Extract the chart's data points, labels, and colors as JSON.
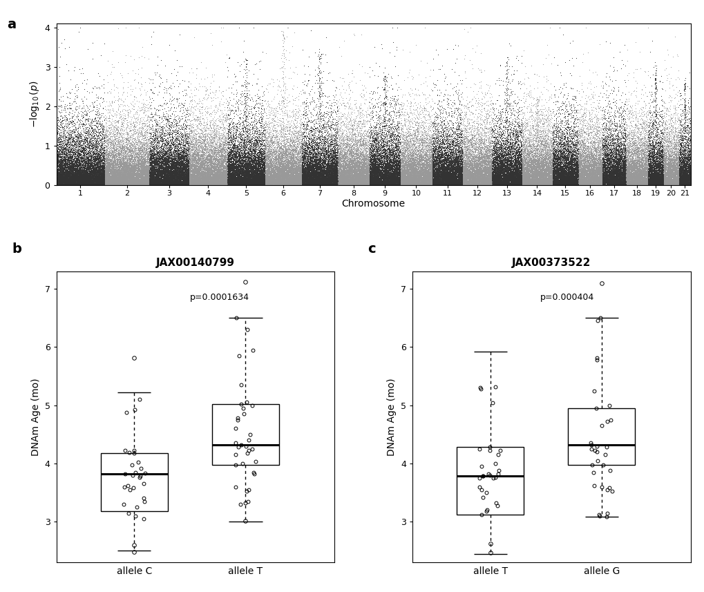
{
  "manhattan": {
    "chromosomes": [
      1,
      2,
      3,
      4,
      5,
      6,
      7,
      8,
      9,
      10,
      11,
      12,
      13,
      14,
      15,
      16,
      17,
      18,
      19,
      20,
      21
    ],
    "chr_sizes": [
      195471971,
      182113224,
      160039680,
      156508116,
      151834684,
      149736546,
      145441459,
      129401213,
      124595110,
      130694993,
      122082543,
      120129022,
      120421639,
      124902244,
      104043685,
      98207768,
      94987271,
      90702639,
      61431566,
      64444167,
      46709983
    ],
    "n_snps": 196148,
    "ylim": [
      0,
      4.1
    ],
    "yticks": [
      0,
      1,
      2,
      3,
      4
    ],
    "ylabel": "$-\\log_{10}(p)$",
    "xlabel": "Chromosome",
    "colors_odd": "#333333",
    "colors_even": "#999999",
    "panel_label": "a",
    "seed": 42,
    "peak_heights": {
      "6": 3.95,
      "7": 3.48,
      "5": 3.22,
      "9": 2.78,
      "13": 3.25,
      "19": 3.15,
      "14": 2.2,
      "21": 2.6
    }
  },
  "boxplot_b": {
    "title": "JAX00140799",
    "ylabel": "DNAm Age (mo)",
    "pvalue": "p=0.0001634",
    "groups": [
      "allele C",
      "allele T"
    ],
    "panel_label": "b",
    "allele_C": {
      "median": 3.82,
      "q1": 3.18,
      "q3": 4.18,
      "whisker_low": 2.5,
      "whisker_high": 5.22,
      "outliers_low": [
        2.48,
        2.6
      ],
      "outliers_high": [
        5.82
      ],
      "jitter": [
        3.82,
        3.79,
        3.8,
        3.76,
        3.83,
        3.85,
        4.18,
        4.22,
        4.19,
        4.23,
        4.02,
        3.92,
        3.97,
        3.6,
        3.55,
        3.65,
        3.62,
        3.58,
        3.4,
        3.3,
        3.25,
        3.35,
        3.15,
        3.1,
        3.05,
        4.88,
        4.92,
        5.1
      ]
    },
    "allele_T": {
      "median": 4.32,
      "q1": 3.97,
      "q3": 5.02,
      "whisker_low": 3.0,
      "whisker_high": 6.5,
      "outliers_low": [
        3.01
      ],
      "outliers_high": [
        7.12
      ],
      "jitter": [
        4.32,
        4.3,
        4.28,
        4.35,
        4.25,
        4.22,
        4.4,
        4.18,
        4.15,
        4.0,
        4.03,
        3.97,
        3.85,
        3.82,
        3.6,
        3.55,
        3.52,
        3.35,
        3.32,
        3.3,
        5.02,
        5.05,
        4.95,
        5.0,
        4.85,
        4.78,
        4.75,
        4.6,
        4.5,
        5.35,
        5.85,
        5.95,
        6.3,
        6.5
      ]
    },
    "ylim": [
      2.3,
      7.3
    ],
    "yticks": [
      3,
      4,
      5,
      6,
      7
    ]
  },
  "boxplot_c": {
    "title": "JAX00373522",
    "ylabel": "DNAm Age (mo)",
    "pvalue": "p=0.000404",
    "groups": [
      "allele T",
      "allele G"
    ],
    "panel_label": "c",
    "allele_T": {
      "median": 3.78,
      "q1": 3.12,
      "q3": 4.28,
      "whisker_low": 2.45,
      "whisker_high": 5.92,
      "outliers_low": [
        2.47,
        2.62
      ],
      "outliers_high": [],
      "jitter": [
        3.78,
        3.75,
        3.8,
        3.76,
        3.82,
        4.28,
        4.25,
        4.22,
        4.23,
        4.15,
        4.0,
        3.95,
        3.88,
        3.82,
        3.78,
        3.75,
        3.6,
        3.55,
        3.5,
        3.42,
        3.32,
        3.28,
        3.2,
        3.18,
        3.12,
        5.28,
        5.32,
        5.04,
        5.3
      ]
    },
    "allele_G": {
      "median": 4.32,
      "q1": 3.97,
      "q3": 4.95,
      "whisker_low": 3.08,
      "whisker_high": 6.5,
      "outliers_low": [],
      "outliers_high": [
        7.1
      ],
      "jitter": [
        4.32,
        4.3,
        4.28,
        4.35,
        4.22,
        4.25,
        4.2,
        4.15,
        4.05,
        3.97,
        3.98,
        3.88,
        3.85,
        3.62,
        3.6,
        3.58,
        3.55,
        3.52,
        3.15,
        3.12,
        3.1,
        3.08,
        4.95,
        5.0,
        4.75,
        4.72,
        4.65,
        5.25,
        5.78,
        5.82,
        6.45,
        6.5
      ]
    },
    "ylim": [
      2.3,
      7.3
    ],
    "yticks": [
      3,
      4,
      5,
      6,
      7
    ]
  },
  "background_color": "#ffffff"
}
